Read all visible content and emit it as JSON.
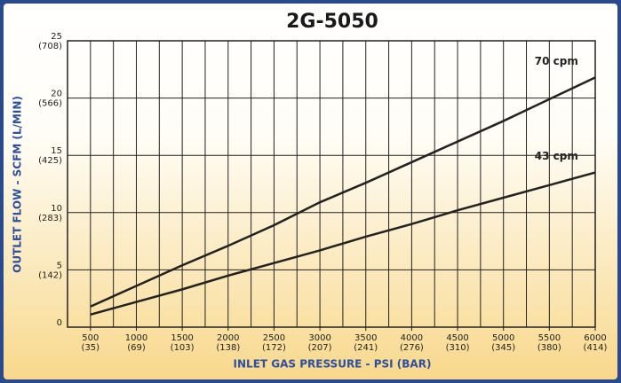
{
  "chart_data": {
    "type": "line",
    "title": "2G-5050",
    "x_label": "INLET GAS PRESSURE - PSI (BAR)",
    "y_label": "OUTLET FLOW - SCFM  (L/MIN)",
    "x": [
      500,
      1000,
      1500,
      2000,
      2500,
      3000,
      3500,
      4000,
      4500,
      5000,
      5500,
      6000
    ],
    "series": [
      {
        "name": "70 cpm",
        "color": "#222222",
        "values": [
          1.8,
          3.6,
          5.4,
          7.1,
          8.9,
          10.9,
          12.6,
          14.4,
          16.2,
          18.0,
          19.9,
          21.8
        ]
      },
      {
        "name": "43 cpm",
        "color": "#222222",
        "values": [
          1.1,
          2.2,
          3.3,
          4.5,
          5.6,
          6.7,
          7.9,
          9.0,
          10.2,
          11.3,
          12.4,
          13.5
        ]
      }
    ],
    "xlim": [
      250,
      6000
    ],
    "ylim": [
      0,
      25
    ],
    "xticks": [
      500,
      1000,
      1500,
      2000,
      2500,
      3000,
      3500,
      4000,
      4500,
      5000,
      5500,
      6000
    ],
    "x_metric_labels": [
      "(35)",
      "(69)",
      "(103)",
      "(138)",
      "(172)",
      "(207)",
      "(241)",
      "(276)",
      "(310)",
      "(345)",
      "(380)",
      "(414)"
    ],
    "yticks": [
      0,
      5,
      10,
      15,
      20,
      25
    ],
    "y_metric_labels": [
      {
        "value": 5,
        "label": "(142)"
      },
      {
        "value": 10,
        "label": "(283)"
      },
      {
        "value": 15,
        "label": "(425)"
      },
      {
        "value": 20,
        "label": "(566)"
      },
      {
        "value": 25,
        "label": "(708)"
      }
    ],
    "x_grid_step": 250,
    "grid": true
  }
}
